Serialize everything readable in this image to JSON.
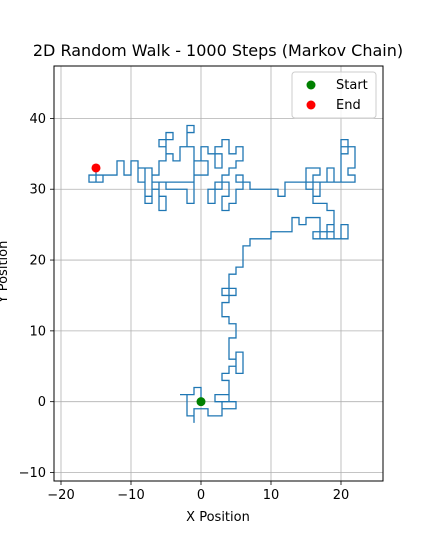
{
  "chart_data": {
    "type": "line",
    "title": "2D Random Walk - 1000 Steps (Markov Chain)",
    "xlabel": "X Position",
    "ylabel": "Y Position",
    "xlim": [
      -21,
      26
    ],
    "ylim": [
      -11.2,
      47.4
    ],
    "xticks": [
      -20,
      -10,
      0,
      10,
      20
    ],
    "yticks": [
      -10,
      0,
      10,
      20,
      30,
      40
    ],
    "grid": true,
    "legend_position": "upper right",
    "series": [
      {
        "name": "",
        "color": "#1f77b4",
        "path": [
          [
            0,
            0
          ],
          [
            0,
            2
          ],
          [
            -1,
            2
          ],
          [
            -1,
            1
          ],
          [
            -3,
            1
          ],
          [
            -2,
            1
          ],
          [
            -2,
            -2
          ],
          [
            -1,
            -2
          ],
          [
            -1,
            -3
          ],
          [
            -1,
            -1
          ],
          [
            1,
            -1
          ],
          [
            1,
            -2
          ],
          [
            3,
            -2
          ],
          [
            3,
            0
          ],
          [
            2,
            0
          ],
          [
            2,
            1
          ],
          [
            4,
            1
          ],
          [
            4,
            0
          ],
          [
            3,
            0
          ],
          [
            3,
            -1
          ],
          [
            5,
            -1
          ],
          [
            5,
            0
          ],
          [
            4,
            0
          ],
          [
            4,
            3
          ],
          [
            3,
            3
          ],
          [
            3,
            4
          ],
          [
            4,
            4
          ],
          [
            4,
            5
          ],
          [
            5,
            5
          ],
          [
            5,
            7
          ],
          [
            6,
            7
          ],
          [
            6,
            4
          ],
          [
            5,
            4
          ],
          [
            5,
            6
          ],
          [
            4,
            6
          ],
          [
            4,
            9
          ],
          [
            5,
            9
          ],
          [
            5,
            11
          ],
          [
            4,
            11
          ],
          [
            4,
            12
          ],
          [
            3,
            12
          ],
          [
            3,
            14
          ],
          [
            4,
            14
          ],
          [
            4,
            16
          ],
          [
            3,
            16
          ],
          [
            3,
            15
          ],
          [
            5,
            15
          ],
          [
            5,
            16
          ],
          [
            4,
            16
          ],
          [
            4,
            18
          ],
          [
            5,
            18
          ],
          [
            5,
            19
          ],
          [
            6,
            19
          ],
          [
            6,
            22
          ],
          [
            7,
            22
          ],
          [
            7,
            23
          ],
          [
            10,
            23
          ],
          [
            10,
            24
          ],
          [
            13,
            24
          ],
          [
            13,
            26
          ],
          [
            14,
            26
          ],
          [
            14,
            25
          ],
          [
            15,
            25
          ],
          [
            15,
            26
          ],
          [
            17,
            26
          ],
          [
            17,
            24
          ],
          [
            16,
            24
          ],
          [
            16,
            23
          ],
          [
            18,
            23
          ],
          [
            18,
            25
          ],
          [
            19,
            25
          ],
          [
            19,
            24
          ],
          [
            17,
            24
          ],
          [
            17,
            23
          ],
          [
            20,
            23
          ],
          [
            20,
            25
          ],
          [
            21,
            25
          ],
          [
            21,
            23
          ],
          [
            19,
            23
          ],
          [
            19,
            27
          ],
          [
            18,
            27
          ],
          [
            18,
            28
          ],
          [
            16,
            28
          ],
          [
            16,
            30
          ],
          [
            15,
            30
          ],
          [
            15,
            33
          ],
          [
            17,
            33
          ],
          [
            17,
            32
          ],
          [
            16,
            32
          ],
          [
            16,
            31
          ],
          [
            19,
            31
          ],
          [
            19,
            33
          ],
          [
            18,
            33
          ],
          [
            18,
            31
          ],
          [
            20,
            31
          ],
          [
            20,
            37
          ],
          [
            21,
            37
          ],
          [
            21,
            35
          ],
          [
            20,
            35
          ],
          [
            20,
            36
          ],
          [
            22,
            36
          ],
          [
            22,
            33
          ],
          [
            21,
            33
          ],
          [
            21,
            32
          ],
          [
            22,
            32
          ],
          [
            22,
            31
          ],
          [
            17,
            31
          ],
          [
            17,
            29
          ],
          [
            16,
            29
          ],
          [
            16,
            31
          ],
          [
            12,
            31
          ],
          [
            12,
            29
          ],
          [
            11,
            29
          ],
          [
            11,
            30
          ],
          [
            7,
            30
          ],
          [
            7,
            31
          ],
          [
            5,
            31
          ],
          [
            5,
            32
          ],
          [
            6,
            32
          ],
          [
            6,
            30
          ],
          [
            5,
            30
          ],
          [
            5,
            28
          ],
          [
            4,
            28
          ],
          [
            4,
            27
          ],
          [
            3,
            27
          ],
          [
            3,
            29
          ],
          [
            4,
            29
          ],
          [
            4,
            31
          ],
          [
            2,
            31
          ],
          [
            2,
            28
          ],
          [
            1,
            28
          ],
          [
            1,
            30
          ],
          [
            3,
            30
          ],
          [
            3,
            32
          ],
          [
            4,
            32
          ],
          [
            4,
            33
          ],
          [
            5,
            33
          ],
          [
            5,
            34
          ],
          [
            6,
            34
          ],
          [
            6,
            36
          ],
          [
            5,
            36
          ],
          [
            5,
            35
          ],
          [
            4,
            35
          ],
          [
            4,
            37
          ],
          [
            3,
            37
          ],
          [
            3,
            36
          ],
          [
            2,
            36
          ],
          [
            2,
            33
          ],
          [
            3,
            33
          ],
          [
            3,
            35
          ],
          [
            1,
            35
          ],
          [
            1,
            36
          ],
          [
            0,
            36
          ],
          [
            0,
            34
          ],
          [
            -1,
            34
          ],
          [
            -1,
            36
          ],
          [
            -2,
            36
          ],
          [
            -2,
            39
          ],
          [
            -1,
            39
          ],
          [
            -1,
            38
          ],
          [
            -2,
            38
          ],
          [
            -2,
            36
          ],
          [
            -3,
            36
          ],
          [
            -3,
            34
          ],
          [
            -4,
            34
          ],
          [
            -4,
            35
          ],
          [
            -5,
            35
          ],
          [
            -5,
            38
          ],
          [
            -4,
            38
          ],
          [
            -4,
            37
          ],
          [
            -6,
            37
          ],
          [
            -6,
            36
          ],
          [
            -5,
            36
          ],
          [
            -5,
            34
          ],
          [
            -6,
            34
          ],
          [
            -6,
            32
          ],
          [
            -7,
            32
          ],
          [
            -7,
            29
          ],
          [
            -8,
            29
          ],
          [
            -8,
            31
          ],
          [
            -9,
            31
          ],
          [
            -9,
            33
          ],
          [
            -7,
            33
          ],
          [
            -7,
            30
          ],
          [
            -6,
            30
          ],
          [
            -6,
            27
          ],
          [
            -5,
            27
          ],
          [
            -5,
            29
          ],
          [
            -6,
            29
          ],
          [
            -6,
            31
          ],
          [
            -5,
            31
          ],
          [
            -5,
            30
          ],
          [
            -2,
            30
          ],
          [
            -2,
            28
          ],
          [
            -1,
            28
          ],
          [
            -1,
            34
          ],
          [
            1,
            34
          ],
          [
            1,
            32
          ],
          [
            -1,
            32
          ],
          [
            -1,
            31
          ],
          [
            -7,
            31
          ],
          [
            -7,
            28
          ],
          [
            -8,
            28
          ],
          [
            -8,
            33
          ],
          [
            -9,
            33
          ],
          [
            -9,
            34
          ],
          [
            -10,
            34
          ],
          [
            -10,
            32
          ],
          [
            -11,
            32
          ],
          [
            -11,
            34
          ],
          [
            -12,
            34
          ],
          [
            -12,
            32
          ],
          [
            -15,
            32
          ],
          [
            -15,
            31
          ],
          [
            -14,
            31
          ],
          [
            -14,
            32
          ],
          [
            -16,
            32
          ],
          [
            -16,
            31
          ],
          [
            -15,
            31
          ],
          [
            -15,
            33
          ]
        ]
      }
    ],
    "markers": [
      {
        "name": "Start",
        "x": 0,
        "y": 0,
        "color": "#008000"
      },
      {
        "name": "End",
        "x": -15,
        "y": 33,
        "color": "#ff0000"
      }
    ]
  }
}
